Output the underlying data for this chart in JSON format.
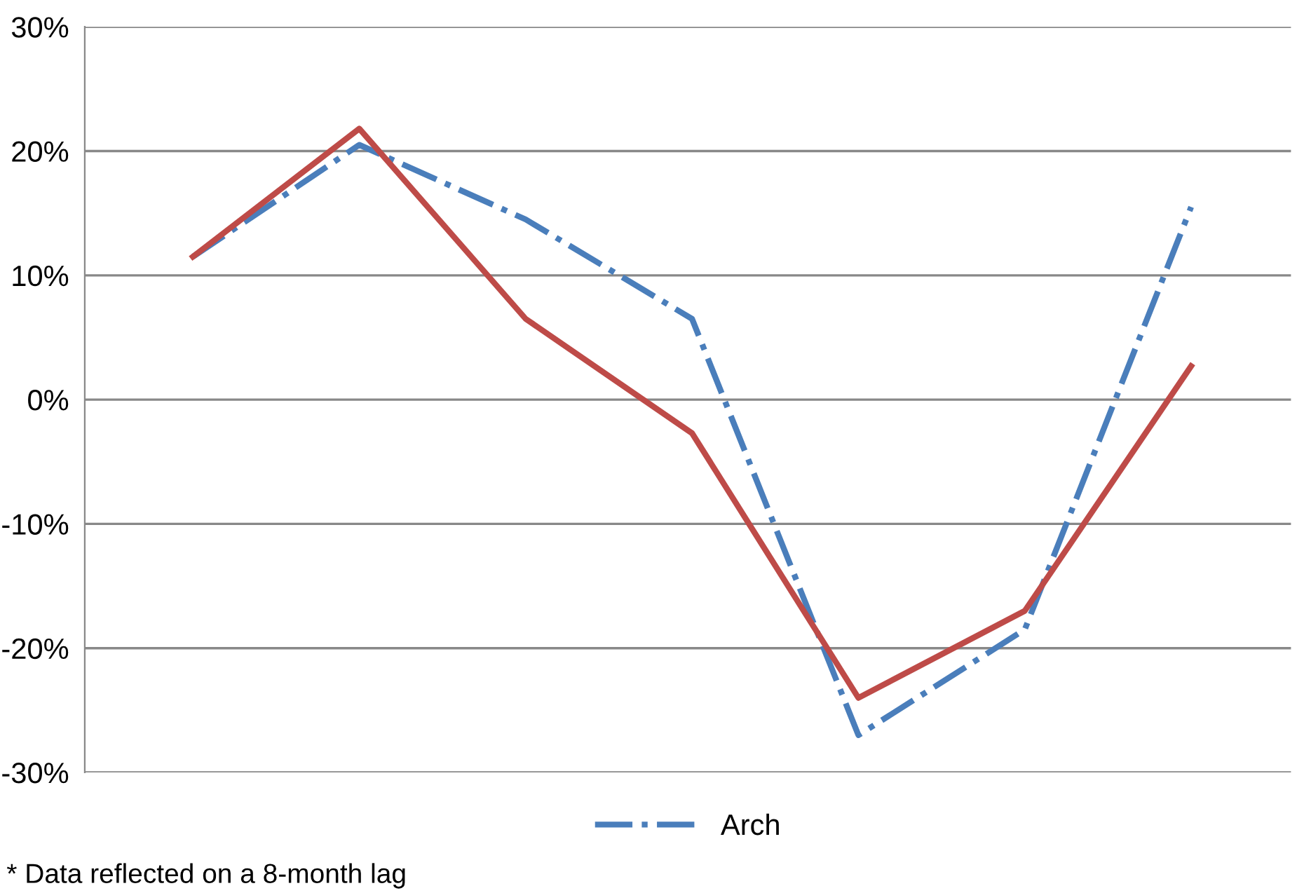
{
  "chart_data": {
    "type": "line",
    "categories": [
      null,
      null,
      null,
      null,
      null,
      null,
      null
    ],
    "series": [
      {
        "name": "Arch",
        "color": "#4a7ebb",
        "line_style": "dashdot",
        "values": [
          11.5,
          20.5,
          14.5,
          6.5,
          -27,
          -18.5,
          15.5
        ]
      },
      {
        "color": "#be4b48",
        "line_style": "solid",
        "values": [
          11.5,
          21.8,
          6.5,
          -2.7,
          -24,
          -17,
          2.7
        ]
      }
    ],
    "ylim": [
      -30,
      30
    ],
    "yticks": [
      {
        "value": -30,
        "label": "-30%"
      },
      {
        "value": -20,
        "label": "-20%"
      },
      {
        "value": -10,
        "label": "-10%"
      },
      {
        "value": 0,
        "label": "0%"
      },
      {
        "value": 10,
        "label": "10%"
      },
      {
        "value": 20,
        "label": "20%"
      },
      {
        "value": 30,
        "label": "30%"
      }
    ],
    "grid": "y",
    "legend": "bottom",
    "marker": "none",
    "annotations": [
      "* Data reflected on a 8-month lag"
    ]
  }
}
